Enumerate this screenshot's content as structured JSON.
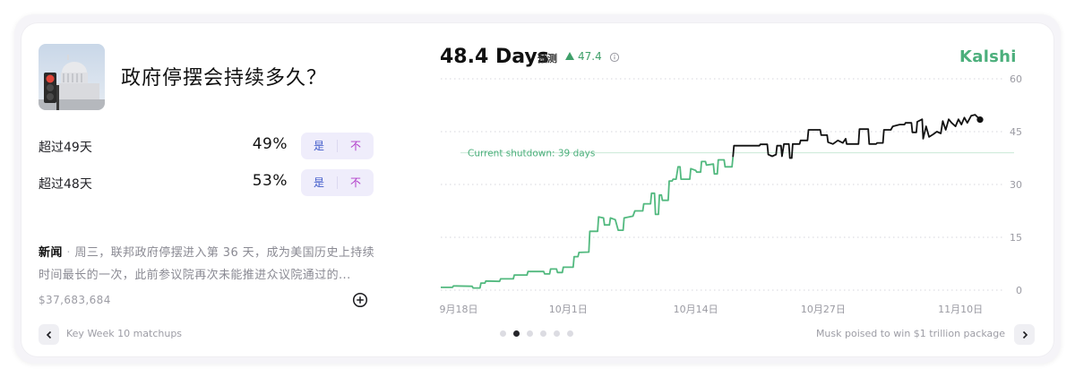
{
  "market": {
    "title": "政府停摆会持续多久？",
    "image_icon": "us-capitol-traffic-light-photo"
  },
  "outcomes": [
    {
      "label": "超过49天",
      "probability": "49%",
      "yes_label": "是",
      "no_label": "不"
    },
    {
      "label": "超过48天",
      "probability": "53%",
      "yes_label": "是",
      "no_label": "不"
    }
  ],
  "news": {
    "label": "新闻",
    "separator": "·",
    "text": "周三，联邦政府停摆进入第 36 天，成为美国历史上持续时间最长的一次，此前参议院再次未能推进众议院通过的..."
  },
  "volume": "$37,683,684",
  "navigation": {
    "prev_label": "Key Week 10 matchups",
    "next_label": "Musk poised to win $1 trillion package",
    "pages": 6,
    "active_page": 1
  },
  "header": {
    "value": "48.4 Days",
    "forecast_label": "预测",
    "change_value": "47.4",
    "brand": "Kalshi"
  },
  "colors": {
    "accent_green": "#4caf7c",
    "history_line": "#52b97f",
    "recent_line": "#111111",
    "yes_text": "#3e59c9",
    "no_text": "#b13bc9"
  },
  "chart_data": {
    "type": "line",
    "x_ticks": [
      "9月18日",
      "10月1日",
      "10月14日",
      "10月27日",
      "11月10日"
    ],
    "x_tick_days": [
      0,
      13,
      26,
      39,
      53
    ],
    "y_ticks": [
      0,
      15,
      30,
      45,
      60
    ],
    "ylim": [
      0,
      60
    ],
    "xlim": [
      0,
      55
    ],
    "grid": "horizontal-dotted",
    "reference_line": {
      "value": 39,
      "label": "Current shutdown: 39 days"
    },
    "series": [
      {
        "style": "green",
        "points": [
          [
            0,
            0.8
          ],
          [
            1.2,
            0.8
          ],
          [
            1.3,
            1.2
          ],
          [
            3.2,
            1.1
          ],
          [
            3.3,
            0.6
          ],
          [
            4,
            0.6
          ],
          [
            4.1,
            2
          ],
          [
            4.5,
            2
          ],
          [
            4.6,
            2.6
          ],
          [
            6,
            2.5
          ],
          [
            6.1,
            3.2
          ],
          [
            7.4,
            3.2
          ],
          [
            7.5,
            4.3
          ],
          [
            8.8,
            4.3
          ],
          [
            8.9,
            5.3
          ],
          [
            10.5,
            5.3
          ],
          [
            10.6,
            4.6
          ],
          [
            11.1,
            4.6
          ],
          [
            11.2,
            6
          ],
          [
            11.8,
            6
          ],
          [
            11.9,
            5
          ],
          [
            12.4,
            5
          ],
          [
            12.5,
            6.5
          ],
          [
            13.5,
            6.5
          ],
          [
            13.6,
            9.5
          ],
          [
            14,
            9.5
          ],
          [
            14.1,
            10.7
          ],
          [
            15.1,
            10.8
          ],
          [
            15.2,
            16.7
          ],
          [
            16,
            16.7
          ],
          [
            16.1,
            20.8
          ],
          [
            16.6,
            20.5
          ],
          [
            16.7,
            18.5
          ],
          [
            17.2,
            18.5
          ],
          [
            17.3,
            20.5
          ],
          [
            17.8,
            20
          ],
          [
            18.1,
            17
          ],
          [
            18.6,
            17
          ],
          [
            18.7,
            20.5
          ],
          [
            19.6,
            21
          ],
          [
            19.8,
            22.5
          ],
          [
            20.6,
            22.5
          ],
          [
            20.7,
            24.5
          ],
          [
            21.4,
            24.5
          ],
          [
            21.5,
            27.5
          ],
          [
            21.8,
            27.5
          ],
          [
            21.9,
            21.5
          ],
          [
            22.2,
            21.5
          ],
          [
            22.3,
            27
          ],
          [
            22.5,
            27
          ],
          [
            22.6,
            25.5
          ],
          [
            23.2,
            25.5
          ],
          [
            23.3,
            31
          ],
          [
            23.6,
            31
          ],
          [
            23.7,
            31.5
          ],
          [
            24,
            31.5
          ],
          [
            24.2,
            35
          ],
          [
            24.4,
            35
          ],
          [
            24.5,
            31.5
          ],
          [
            25.4,
            31.5
          ],
          [
            25.5,
            34.5
          ],
          [
            26,
            34
          ],
          [
            26.1,
            33.5
          ],
          [
            26.5,
            33.5
          ],
          [
            26.6,
            36.5
          ],
          [
            27,
            36.5
          ],
          [
            27.1,
            35.5
          ],
          [
            27.8,
            35.8
          ],
          [
            27.9,
            33
          ],
          [
            28.2,
            33
          ],
          [
            28.3,
            37
          ],
          [
            28.9,
            37
          ],
          [
            29,
            35
          ],
          [
            29.7,
            35
          ],
          [
            29.8,
            37.8
          ]
        ]
      },
      {
        "style": "black",
        "points": [
          [
            29.8,
            37.8
          ],
          [
            29.9,
            41
          ],
          [
            32.5,
            41
          ],
          [
            32.6,
            41.4
          ],
          [
            33.3,
            41.4
          ],
          [
            33.4,
            38.5
          ],
          [
            33.8,
            38
          ],
          [
            34.2,
            38.5
          ],
          [
            34.3,
            41
          ],
          [
            34.7,
            41
          ],
          [
            34.8,
            38
          ],
          [
            35,
            41.5
          ],
          [
            35.5,
            41.5
          ],
          [
            35.6,
            37.5
          ],
          [
            35.8,
            37.5
          ],
          [
            35.9,
            41.5
          ],
          [
            36.6,
            41.5
          ],
          [
            36.7,
            42.5
          ],
          [
            37.4,
            42.5
          ],
          [
            37.5,
            45.5
          ],
          [
            38.7,
            45.5
          ],
          [
            38.8,
            44
          ],
          [
            39.4,
            44
          ],
          [
            39.5,
            42
          ],
          [
            40,
            41.5
          ],
          [
            40.5,
            42.5
          ],
          [
            41,
            41.8
          ],
          [
            41.3,
            43
          ],
          [
            41.4,
            41.5
          ],
          [
            42.6,
            41.5
          ],
          [
            42.7,
            45.7
          ],
          [
            43.6,
            45.7
          ],
          [
            43.7,
            41.5
          ],
          [
            44.4,
            41.5
          ],
          [
            44.5,
            41.8
          ],
          [
            45.1,
            41.8
          ],
          [
            45.2,
            45.5
          ],
          [
            45.9,
            45.5
          ],
          [
            46.1,
            46.5
          ],
          [
            46.8,
            47
          ],
          [
            47.3,
            47
          ],
          [
            47.4,
            47.5
          ],
          [
            48,
            47.5
          ],
          [
            48.1,
            44.8
          ],
          [
            48.5,
            44.8
          ],
          [
            48.6,
            47.8
          ],
          [
            49.1,
            48.5
          ],
          [
            49.2,
            43
          ],
          [
            49.5,
            46.5
          ],
          [
            49.8,
            43.5
          ],
          [
            50.2,
            44.2
          ],
          [
            50.6,
            45
          ],
          [
            51,
            44.5
          ],
          [
            51.2,
            48
          ],
          [
            51.5,
            45.5
          ],
          [
            51.8,
            48.5
          ],
          [
            52.1,
            47.5
          ],
          [
            52.5,
            46.5
          ],
          [
            52.8,
            48.5
          ],
          [
            53.1,
            47
          ],
          [
            53.4,
            49
          ],
          [
            53.7,
            47.5
          ],
          [
            54.1,
            49.5
          ],
          [
            54.5,
            49.8
          ],
          [
            55,
            48.4
          ]
        ]
      }
    ],
    "end_point": [
      55,
      48.4
    ]
  }
}
